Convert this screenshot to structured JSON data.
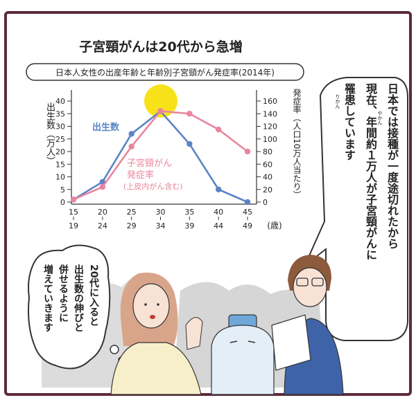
{
  "chart_title": "子宮頸がんは20代から急増",
  "chart_subtitle": "日本人女性の出産年齢と年齢別子宮頸がん発症率(2014年)",
  "left_axis_label": "出生数（万人）",
  "right_axis_label": "発症率（人口10万人当たり）",
  "age_unit": "(歳)",
  "speech_right": [
    "日本では接種が一度途切れたから",
    "現在、年間約１万人が子宮頸がんに",
    "罹患しています"
  ],
  "speech_left": [
    "20代に入ると",
    "出生数の伸びと",
    "併せるように",
    "増えていきます"
  ],
  "ruby": {
    "yakan": "やかん",
    "rikan": "りかん"
  },
  "colors": {
    "births": "#5b84c4",
    "incidence": "#e9859e",
    "sun": "#f7e21a",
    "frame": "#5c2a3c"
  },
  "chart_data": {
    "type": "line",
    "categories": [
      [
        "15",
        "19"
      ],
      [
        "20",
        "24"
      ],
      [
        "25",
        "29"
      ],
      [
        "30",
        "34"
      ],
      [
        "35",
        "39"
      ],
      [
        "40",
        "44"
      ],
      [
        "45",
        "49"
      ]
    ],
    "left_axis": {
      "ylim": [
        0,
        40
      ],
      "ticks": [
        0,
        5,
        10,
        15,
        20,
        25,
        30,
        35,
        40
      ]
    },
    "right_axis": {
      "ylim": [
        0,
        160
      ],
      "ticks": [
        0,
        20,
        40,
        60,
        80,
        100,
        120,
        140,
        160
      ]
    },
    "series": [
      {
        "name": "出生数",
        "axis": "left",
        "values": [
          1,
          8,
          27,
          36,
          23,
          5,
          0
        ]
      },
      {
        "name": "子宮頸がん発症率",
        "name_sub": "(上皮内がん含む)",
        "axis": "right",
        "values": [
          4,
          24,
          88,
          144,
          140,
          115,
          80
        ]
      }
    ]
  }
}
